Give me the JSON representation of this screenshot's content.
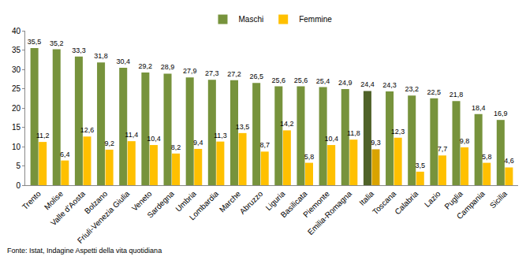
{
  "chart_data": {
    "type": "bar",
    "categories": [
      "Trento",
      "Molise",
      "Valle d'Aosta",
      "Bolzano",
      "Friuli-Venezia Giulia",
      "Veneto",
      "Sardegna",
      "Umbria",
      "Lombardia",
      "Marche",
      "Abruzzo",
      "Liguria",
      "Basilicata",
      "Piemonte",
      "Emilia-Romagna",
      "Italia",
      "Toscana",
      "Calabria",
      "Lazio",
      "Puglia",
      "Campania",
      "Sicilia"
    ],
    "series": [
      {
        "name": "Maschi",
        "color": "#77933c",
        "colors": [
          "#77933c",
          "#77933c",
          "#77933c",
          "#77933c",
          "#77933c",
          "#77933c",
          "#77933c",
          "#77933c",
          "#77933c",
          "#77933c",
          "#77933c",
          "#77933c",
          "#77933c",
          "#77933c",
          "#77933c",
          "#4f6228",
          "#77933c",
          "#77933c",
          "#77933c",
          "#77933c",
          "#77933c",
          "#77933c"
        ],
        "values": [
          35.5,
          35.2,
          33.3,
          31.8,
          30.4,
          29.2,
          28.9,
          27.9,
          27.3,
          27.2,
          26.5,
          25.6,
          25.6,
          25.4,
          24.9,
          24.4,
          24.3,
          23.2,
          22.5,
          21.8,
          18.4,
          16.9
        ],
        "value_labels": [
          "35,5",
          "35,2",
          "33,3",
          "31,8",
          "30,4",
          "29,2",
          "28,9",
          "27,9",
          "27,3",
          "27,2",
          "26,5",
          "25,6",
          "25,6",
          "25,4",
          "24,9",
          "24,4",
          "24,3",
          "23,2",
          "22,5",
          "21,8",
          "18,4",
          "16,9"
        ]
      },
      {
        "name": "Femmine",
        "color": "#ffc000",
        "colors": [
          "#ffc000",
          "#ffc000",
          "#ffc000",
          "#ffc000",
          "#ffc000",
          "#ffc000",
          "#ffc000",
          "#ffc000",
          "#ffc000",
          "#ffc000",
          "#ffc000",
          "#ffc000",
          "#ffc000",
          "#ffc000",
          "#ffc000",
          "#d9a300",
          "#ffc000",
          "#ffc000",
          "#ffc000",
          "#ffc000",
          "#ffc000",
          "#ffc000"
        ],
        "values": [
          11.2,
          6.4,
          12.6,
          9.2,
          11.4,
          10.4,
          8.2,
          9.4,
          11.3,
          13.5,
          8.7,
          14.2,
          5.8,
          10.4,
          11.8,
          9.3,
          12.3,
          3.5,
          7.7,
          9.8,
          5.8,
          4.6
        ],
        "value_labels": [
          "11,2",
          "6,4",
          "12,6",
          "9,2",
          "11,4",
          "10,4",
          "8,2",
          "9,4",
          "11,3",
          "13,5",
          "8,7",
          "14,2",
          "5,8",
          "10,4",
          "11,8",
          "9,3",
          "12,3",
          "3,5",
          "7,7",
          "9,8",
          "5,8",
          "4,6"
        ]
      }
    ],
    "ylim": [
      0,
      40
    ],
    "yticks": [
      0,
      5,
      10,
      15,
      20,
      25,
      30,
      35,
      40
    ],
    "grid": false,
    "legend": "top",
    "data_labels": true,
    "annotations": [
      "Fonte: Istat, Indagine Aspetti della vita quotidiana"
    ]
  }
}
